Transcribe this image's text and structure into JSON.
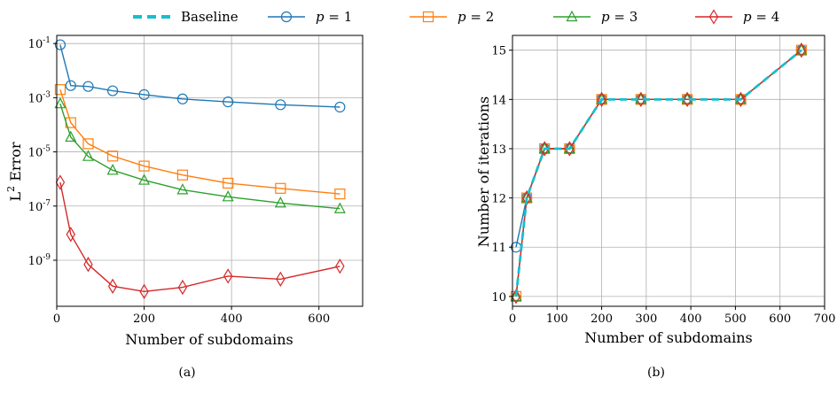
{
  "legend": [
    {
      "label": "Baseline",
      "color": "#17becf",
      "marker": "none",
      "dashed": true
    },
    {
      "label_prefix": "p",
      "label_value": "1",
      "color": "#1f77b4",
      "marker": "circle"
    },
    {
      "label_prefix": "p",
      "label_value": "2",
      "color": "#ff7f0e",
      "marker": "square"
    },
    {
      "label_prefix": "p",
      "label_value": "3",
      "color": "#2ca02c",
      "marker": "triangle"
    },
    {
      "label_prefix": "p",
      "label_value": "4",
      "color": "#d62728",
      "marker": "diamond"
    }
  ],
  "chart_data": [
    {
      "type": "line",
      "caption": "(a)",
      "xlabel": "Number of subdomains",
      "ylabel_base": "L",
      "ylabel_sup": "2",
      "ylabel_rest": " Error",
      "yscale": "log",
      "xlim": [
        0,
        700
      ],
      "ylim_exp": [
        -10.7,
        -0.7
      ],
      "xticks": [
        0,
        200,
        400,
        600
      ],
      "yticks_exp": [
        -1,
        -3,
        -5,
        -7,
        -9
      ],
      "grid": true,
      "x": [
        8,
        32,
        72,
        128,
        200,
        288,
        392,
        512,
        648
      ],
      "series": [
        {
          "name": "p = 1",
          "color": "#1f77b4",
          "marker": "circle",
          "values": [
            0.09,
            0.0028,
            0.0026,
            0.0018,
            0.0013,
            0.0009,
            0.0007,
            0.00055,
            0.00045
          ]
        },
        {
          "name": "p = 2",
          "color": "#ff7f0e",
          "marker": "square",
          "values": [
            0.002,
            0.00012,
            2e-05,
            7e-06,
            3e-06,
            1.4e-06,
            7e-07,
            4.5e-07,
            2.8e-07
          ]
        },
        {
          "name": "p = 3",
          "color": "#2ca02c",
          "marker": "triangle",
          "values": [
            0.0006,
            3.5e-05,
            6.8e-06,
            2.1e-06,
            9e-07,
            4e-07,
            2.2e-07,
            1.3e-07,
            8e-08
          ]
        },
        {
          "name": "p = 4",
          "color": "#d62728",
          "marker": "diamond",
          "values": [
            7.5e-07,
            9e-09,
            7e-10,
            1.1e-10,
            7e-11,
            1e-10,
            2.6e-10,
            2e-10,
            6e-10
          ]
        }
      ]
    },
    {
      "type": "line",
      "caption": "(b)",
      "xlabel": "Number of subdomains",
      "ylabel": "Number of iterations",
      "xlim": [
        0,
        700
      ],
      "ylim": [
        9.8,
        15.3
      ],
      "xticks": [
        0,
        100,
        200,
        300,
        400,
        500,
        600,
        700
      ],
      "yticks": [
        10,
        11,
        12,
        13,
        14,
        15
      ],
      "grid": true,
      "x": [
        8,
        32,
        72,
        128,
        200,
        288,
        392,
        512,
        648
      ],
      "series": [
        {
          "name": "p = 1",
          "color": "#1f77b4",
          "marker": "circle",
          "values": [
            11,
            12,
            13,
            13,
            14,
            14,
            14,
            14,
            15
          ]
        },
        {
          "name": "p = 2",
          "color": "#ff7f0e",
          "marker": "square",
          "values": [
            10,
            12,
            13,
            13,
            14,
            14,
            14,
            14,
            15
          ]
        },
        {
          "name": "p = 3",
          "color": "#2ca02c",
          "marker": "triangle",
          "values": [
            10,
            12,
            13,
            13,
            14,
            14,
            14,
            14,
            15
          ]
        },
        {
          "name": "p = 4",
          "color": "#d62728",
          "marker": "diamond",
          "values": [
            10,
            12,
            13,
            13,
            14,
            14,
            14,
            14,
            15
          ]
        },
        {
          "name": "Baseline",
          "color": "#17becf",
          "marker": "none",
          "dashed": true,
          "values": [
            10,
            12,
            13,
            13,
            14,
            14,
            14,
            14,
            15
          ]
        }
      ]
    }
  ]
}
